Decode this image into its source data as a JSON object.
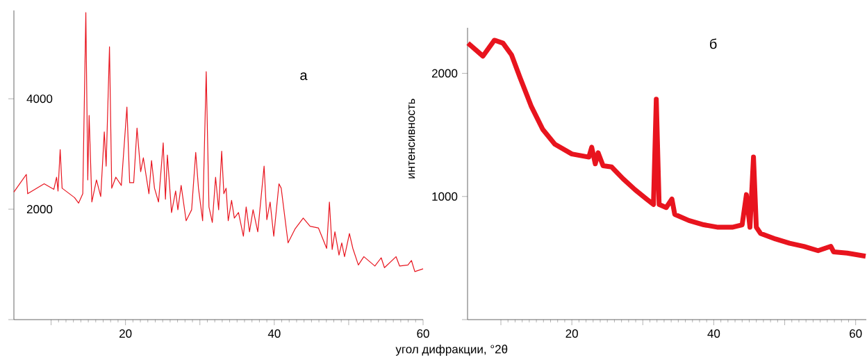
{
  "chart_data": [
    {
      "type": "line",
      "title": "а",
      "xlabel": "угол дифракции, °2θ",
      "color": "#e8141e",
      "x": [
        5,
        6.67,
        6.85,
        9.07,
        10.37,
        10.74,
        10.93,
        11.22,
        11.48,
        13.15,
        13.7,
        14.26,
        14.67,
        14.93,
        15.11,
        15.48,
        16.1,
        16.67,
        17.15,
        17.4,
        17.85,
        18.15,
        18.7,
        19.44,
        20.19,
        20.56,
        21.1,
        21.55,
        22.04,
        22.4,
        23.15,
        23.5,
        23.9,
        24.44,
        25.07,
        25.37,
        25.63,
        26.19,
        26.74,
        27.04,
        27.48,
        28.15,
        28.89,
        29.44,
        29.81,
        30.37,
        30.85,
        31.22,
        31.67,
        32.11,
        32.52,
        32.93,
        33.22,
        33.52,
        33.81,
        34.26,
        34.63,
        35.19,
        35.85,
        36.22,
        36.67,
        37.15,
        37.78,
        38.63,
        39.0,
        39.44,
        39.93,
        40.63,
        40.93,
        41.85,
        42.78,
        43.89,
        44.81,
        45.93,
        47.04,
        47.41,
        47.78,
        48.15,
        48.7,
        49.07,
        49.44,
        50.1,
        50.56,
        51.3,
        52.04,
        53.52,
        54.37,
        54.81,
        56.37,
        56.85,
        57.96,
        58.44,
        58.89,
        60
      ],
      "values": [
        2310,
        2630,
        2280,
        2460,
        2360,
        2580,
        2330,
        3080,
        2380,
        2210,
        2110,
        2280,
        5560,
        2530,
        3700,
        2130,
        2530,
        2230,
        3400,
        2780,
        4940,
        2380,
        2580,
        2430,
        3850,
        2480,
        2480,
        3470,
        2680,
        2930,
        2280,
        2880,
        2380,
        2130,
        3200,
        2180,
        2980,
        1940,
        2330,
        1990,
        2430,
        1790,
        1990,
        3030,
        2380,
        1790,
        4490,
        2040,
        1760,
        2580,
        1990,
        3050,
        2280,
        2380,
        1790,
        2160,
        1840,
        1940,
        1510,
        2040,
        1590,
        1990,
        1590,
        2780,
        1810,
        2130,
        1510,
        2460,
        2380,
        1390,
        1640,
        1840,
        1690,
        1660,
        1290,
        2130,
        1270,
        1590,
        1170,
        1390,
        1140,
        1560,
        1290,
        990,
        1140,
        970,
        1120,
        940,
        1140,
        970,
        990,
        1070,
        870,
        920
      ],
      "xlim": [
        5,
        60
      ],
      "ylim": [
        0,
        5600
      ],
      "xticks": [
        {
          "value": 10,
          "label": null
        },
        20,
        {
          "value": 30,
          "label": null
        },
        40,
        {
          "value": 50,
          "label": null
        },
        60
      ],
      "yticks": [
        {
          "value": 0,
          "label": null
        },
        2000,
        4000
      ],
      "grid": false
    },
    {
      "type": "line",
      "title": "б",
      "ylabel": "интенсивность",
      "color": "#e8141e",
      "x": [
        5.37,
        7.47,
        9.09,
        10.3,
        11.5,
        12.7,
        14.3,
        15.9,
        17.6,
        20,
        22.4,
        22.8,
        23.3,
        23.7,
        24.4,
        25.6,
        27.2,
        28.9,
        30.5,
        31.5,
        31.9,
        32.3,
        33.3,
        34.1,
        34.5,
        36.5,
        38.6,
        40.6,
        42.6,
        44.0,
        44.6,
        45.1,
        45.6,
        46.0,
        46.6,
        48.7,
        50.7,
        52.7,
        54.7,
        56.5,
        56.9,
        58.8,
        61.4
      ],
      "values": [
        2245,
        2140,
        2270,
        2245,
        2150,
        1965,
        1730,
        1545,
        1425,
        1345,
        1320,
        1400,
        1265,
        1355,
        1250,
        1240,
        1145,
        1055,
        980,
        935,
        1790,
        935,
        910,
        980,
        855,
        805,
        770,
        750,
        750,
        770,
        1015,
        750,
        1320,
        750,
        700,
        655,
        620,
        595,
        560,
        595,
        550,
        540,
        515
      ],
      "xlim": [
        5.3,
        61.5
      ],
      "ylim": [
        0,
        2370
      ],
      "xticks": [
        {
          "value": 10,
          "label": null
        },
        20,
        {
          "value": 30,
          "label": null
        },
        40,
        {
          "value": 50,
          "label": null
        },
        60
      ],
      "yticks": [
        {
          "value": 0,
          "label": null
        },
        1000,
        2000
      ],
      "grid": false
    }
  ]
}
